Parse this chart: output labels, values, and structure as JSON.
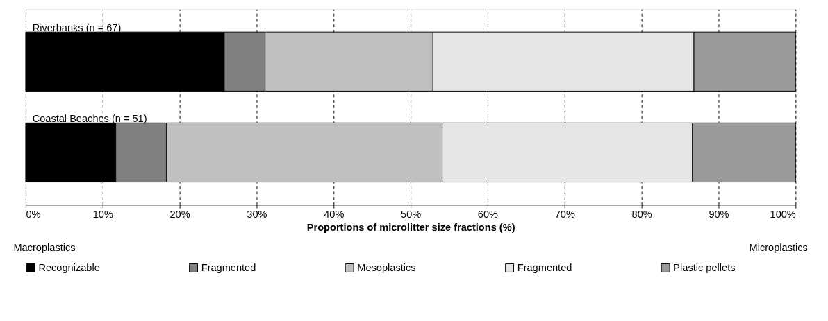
{
  "chart_data": {
    "type": "bar",
    "orientation": "horizontal",
    "stacked": true,
    "categories": [
      "Riverbanks (n = 67)",
      "Coastal Beaches (n = 51)"
    ],
    "series": [
      {
        "name": "Recognizable",
        "color": "#000000",
        "values": [
          25.8,
          11.7
        ]
      },
      {
        "name": "Fragmented",
        "color": "#808080",
        "values": [
          5.3,
          6.6
        ]
      },
      {
        "name": "Mesoplastics",
        "color": "#c0c0c0",
        "values": [
          21.8,
          35.8
        ]
      },
      {
        "name": "Fragmented",
        "color": "#e6e6e6",
        "values": [
          33.9,
          32.5
        ]
      },
      {
        "name": "Plastic pellets",
        "color": "#9a9a9a",
        "values": [
          13.2,
          13.4
        ]
      }
    ],
    "xlim": [
      0,
      100
    ],
    "xticks": [
      {
        "value": 0,
        "label": "0%"
      },
      {
        "value": 10,
        "label": "10%"
      },
      {
        "value": 20,
        "label": "20%"
      },
      {
        "value": 30,
        "label": "30%"
      },
      {
        "value": 40,
        "label": "40%"
      },
      {
        "value": 50,
        "label": "50%"
      },
      {
        "value": 60,
        "label": "60%"
      },
      {
        "value": 70,
        "label": "70%"
      },
      {
        "value": 80,
        "label": "80%"
      },
      {
        "value": 90,
        "label": "90%"
      },
      {
        "value": 100,
        "label": "100%"
      }
    ],
    "xlabel": "Proportions of microlitter size fractions (%)",
    "annotations": [
      "Macroplastics",
      "Microplastics"
    ],
    "grid": "x",
    "legend": "bottom",
    "tick_labels": "x"
  }
}
